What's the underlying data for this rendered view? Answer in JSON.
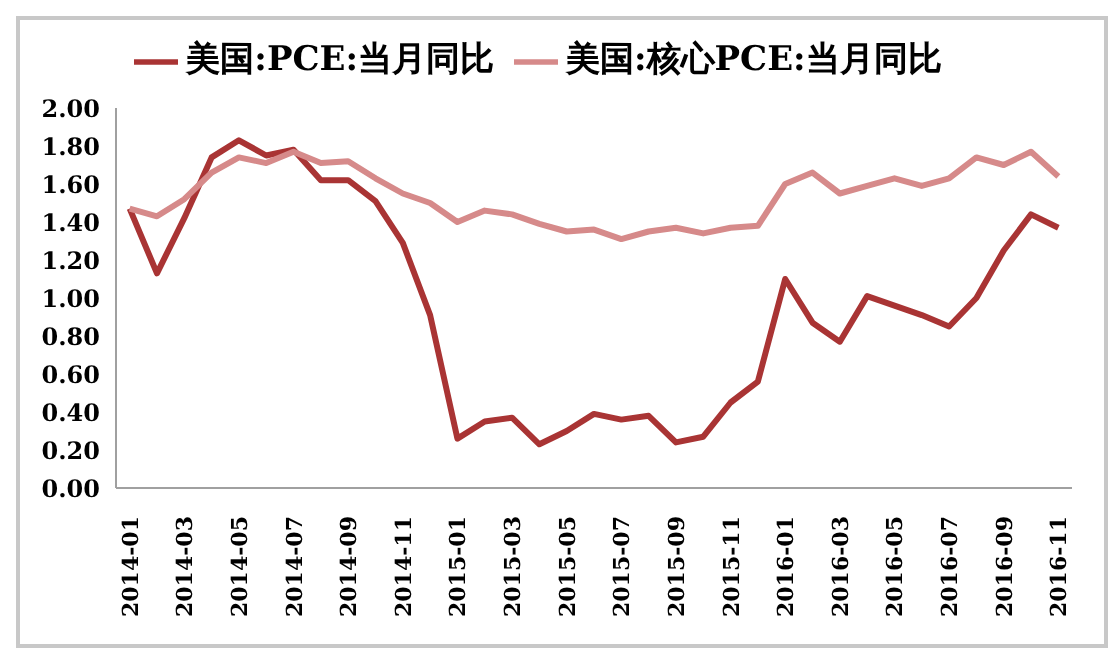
{
  "chart_data": {
    "type": "line",
    "categories": [
      "2014-01",
      null,
      "2014-03",
      null,
      "2014-05",
      null,
      "2014-07",
      null,
      "2014-09",
      null,
      "2014-11",
      null,
      "2015-01",
      null,
      "2015-03",
      null,
      "2015-05",
      null,
      "2015-07",
      null,
      "2015-09",
      null,
      "2015-11",
      null,
      "2016-01",
      null,
      "2016-03",
      null,
      "2016-05",
      null,
      "2016-07",
      null,
      "2016-09",
      null,
      "2016-11"
    ],
    "series": [
      {
        "name": "美国:PCE:当月同比",
        "color": "#a93434",
        "values": [
          1.47,
          1.13,
          1.42,
          1.74,
          1.83,
          1.75,
          1.78,
          1.62,
          1.62,
          1.51,
          1.29,
          0.91,
          0.26,
          0.35,
          0.37,
          0.23,
          0.3,
          0.39,
          0.36,
          0.38,
          0.24,
          0.27,
          0.45,
          0.56,
          1.1,
          0.87,
          0.77,
          1.01,
          0.96,
          0.91,
          0.85,
          1.0,
          1.25,
          1.44,
          1.37
        ]
      },
      {
        "name": "美国:核心PCE:当月同比",
        "color": "#d68a8a",
        "values": [
          1.47,
          1.43,
          1.52,
          1.66,
          1.74,
          1.71,
          1.77,
          1.71,
          1.72,
          1.63,
          1.55,
          1.5,
          1.4,
          1.46,
          1.44,
          1.39,
          1.35,
          1.36,
          1.31,
          1.35,
          1.37,
          1.34,
          1.37,
          1.38,
          1.6,
          1.66,
          1.55,
          1.59,
          1.63,
          1.59,
          1.63,
          1.74,
          1.7,
          1.77,
          1.64
        ]
      }
    ],
    "ylim": [
      0,
      2
    ],
    "yticks": [
      {
        "value": 0,
        "label": "0.00"
      },
      {
        "value": 0.2,
        "label": "0.20"
      },
      {
        "value": 0.4,
        "label": "0.40"
      },
      {
        "value": 0.6,
        "label": "0.60"
      },
      {
        "value": 0.8,
        "label": "0.80"
      },
      {
        "value": 1,
        "label": "1.00"
      },
      {
        "value": 1.2,
        "label": "1.20"
      },
      {
        "value": 1.4,
        "label": "1.40"
      },
      {
        "value": 1.6,
        "label": "1.60"
      },
      {
        "value": 1.8,
        "label": "1.80"
      },
      {
        "value": 2,
        "label": "2.00"
      }
    ],
    "legend": "top",
    "marker": "none",
    "line_style": "solid"
  }
}
